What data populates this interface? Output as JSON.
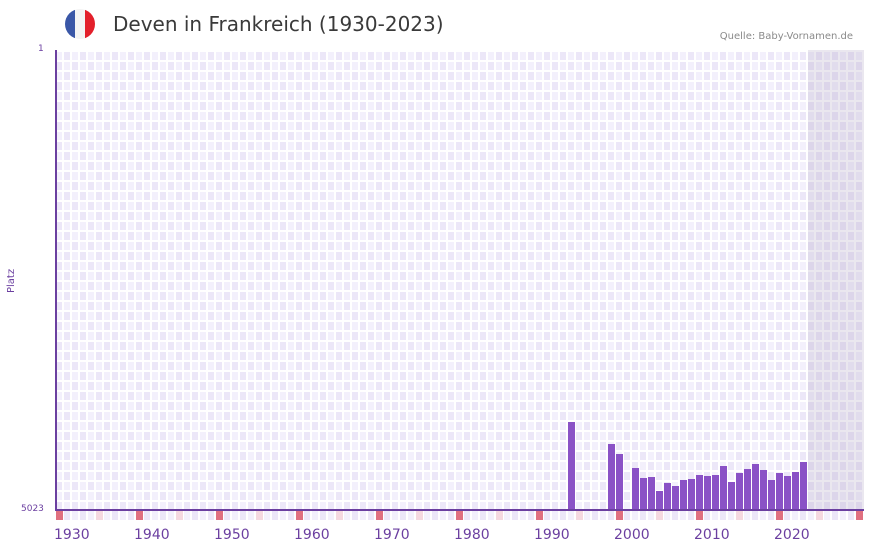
{
  "header": {
    "title": "Deven in Frankreich (1930-2023)",
    "source": "Quelle: Baby-Vornamen.de",
    "flag": {
      "name": "france-flag-icon",
      "colors": [
        "#3a57a7",
        "#f4f4f4",
        "#e3202b"
      ]
    }
  },
  "axis": {
    "y_title": "Platz",
    "y_top_label": "1",
    "y_bottom_label": "5023",
    "x_labels": [
      "1930",
      "1940",
      "1950",
      "1960",
      "1970",
      "1980",
      "1990",
      "2000",
      "2010",
      "2020"
    ]
  },
  "colors": {
    "bar": "#8a52c6",
    "axis": "#6b3fa0",
    "decade_tick": "#e07080",
    "half_decade_tick": "#f5d8e0",
    "grid_a": "#f3f0fc",
    "grid_b": "#ece7f8",
    "future_shade": "#e4e0ec"
  },
  "chart_data": {
    "type": "bar",
    "title": "Deven in Frankreich (1930-2023)",
    "xlabel": "",
    "ylabel": "Platz",
    "y_inverted": true,
    "ylim": [
      5023,
      1
    ],
    "xlim": [
      1930,
      2030
    ],
    "grid": true,
    "legend": null,
    "x_tick_labels": [
      "1930",
      "1940",
      "1950",
      "1960",
      "1970",
      "1980",
      "1990",
      "2000",
      "2010",
      "2020"
    ],
    "categories": [
      "1994",
      "1999",
      "2000",
      "2002",
      "2003",
      "2004",
      "2005",
      "2006",
      "2007",
      "2008",
      "2009",
      "2010",
      "2011",
      "2012",
      "2013",
      "2014",
      "2015",
      "2016",
      "2017",
      "2018",
      "2019",
      "2020",
      "2021",
      "2022",
      "2023"
    ],
    "values": [
      4067,
      4307,
      4416,
      4569,
      4678,
      4667,
      4820,
      4733,
      4765,
      4700,
      4689,
      4645,
      4656,
      4645,
      4547,
      4722,
      4623,
      4580,
      4525,
      4591,
      4700,
      4623,
      4656,
      4613,
      4493
    ],
    "note": "Values are rank positions (Platz); lower rank = more popular; bars grow upward from rank 5023. Years 1930-1993 and 1995-1998, 2001 have no bar."
  }
}
